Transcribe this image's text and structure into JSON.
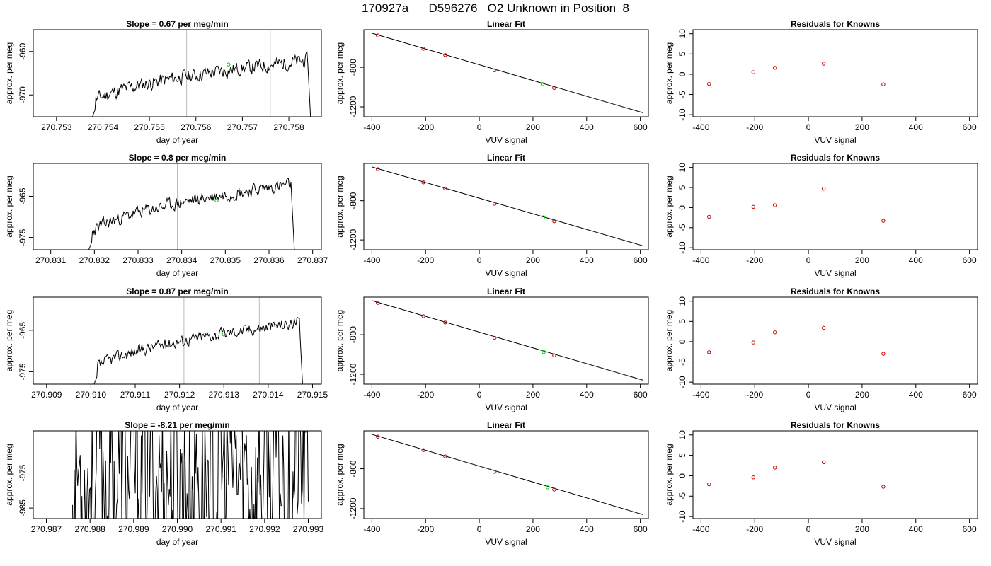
{
  "figure": {
    "main_title": "170927a      D596276   O2 Unknown in Position  8",
    "colors": {
      "trace": "#000000",
      "known_points": "#cc0000",
      "unknown_point": "#00cc00",
      "vertical_lines": "#bbbbbb"
    }
  },
  "chart_data": [
    {
      "type": "line",
      "title": "Slope =  0.67  per meg/min",
      "xlabel": "day of year",
      "ylabel": "approx. per meg",
      "xticks": [
        "270.753",
        "270.754",
        "270.755",
        "270.756",
        "270.757",
        "270.758"
      ],
      "xlim": [
        270.7525,
        270.7587
      ],
      "yticks": [
        "-970",
        "-960"
      ],
      "ylim": [
        -975,
        -955
      ],
      "grid": false,
      "vlines": [
        270.7558,
        270.7576
      ],
      "unknown_point": {
        "x": 270.7567,
        "y": -963
      },
      "trace": {
        "x_start": 270.7537,
        "x_end": 270.7585,
        "level_start": -973,
        "level_end": -962,
        "noise": 2.3,
        "seed": 11
      }
    },
    {
      "type": "scatter",
      "title": "Linear Fit",
      "xlabel": "VUV signal",
      "ylabel": "approx. per meg",
      "xticks": [
        "-400",
        "-200",
        "0",
        "200",
        "400",
        "600"
      ],
      "xlim": [
        -430,
        630
      ],
      "yticks": [
        "-800",
        "-1200"
      ],
      "ylim": [
        -1300,
        -420
      ],
      "grid": false,
      "fit_line": {
        "x": [
          -400,
          610
        ],
        "y": [
          -455,
          -1260
        ]
      },
      "knowns": [
        {
          "x": -378,
          "y": -478
        },
        {
          "x": -208,
          "y": -613
        },
        {
          "x": -127,
          "y": -676
        },
        {
          "x": 57,
          "y": -831
        },
        {
          "x": 279,
          "y": -1009
        }
      ],
      "unknown": {
        "x": 236,
        "y": -970
      }
    },
    {
      "type": "scatter",
      "title": "Residuals for Knowns",
      "xlabel": "VUV signal",
      "ylabel": "approx. per meg",
      "xticks": [
        "-400",
        "-200",
        "0",
        "200",
        "400",
        "600"
      ],
      "xlim": [
        -430,
        630
      ],
      "yticks": [
        "-10",
        "-5",
        "0",
        "5",
        "10"
      ],
      "ylim": [
        -10.5,
        11
      ],
      "grid": false,
      "points": [
        {
          "x": -370,
          "y": -2.4
        },
        {
          "x": -205,
          "y": 0.5
        },
        {
          "x": -125,
          "y": 1.6
        },
        {
          "x": 57,
          "y": 2.6
        },
        {
          "x": 279,
          "y": -2.5
        }
      ]
    },
    {
      "type": "line",
      "title": "Slope =  0.8  per meg/min",
      "xlabel": "day of year",
      "ylabel": "approx. per meg",
      "xticks": [
        "270.831",
        "270.832",
        "270.833",
        "270.834",
        "270.835",
        "270.836",
        "270.837"
      ],
      "xlim": [
        270.8306,
        270.8372
      ],
      "yticks": [
        "-975",
        "-965"
      ],
      "ylim": [
        -978,
        -957
      ],
      "grid": false,
      "vlines": [
        270.8339,
        270.8357
      ],
      "unknown_point": {
        "x": 270.8348,
        "y": -966
      },
      "trace": {
        "x_start": 270.8318,
        "x_end": 270.8366,
        "level_start": -976,
        "level_end": -962,
        "noise": 2.2,
        "seed": 23
      }
    },
    {
      "type": "scatter",
      "title": "Linear Fit",
      "xlabel": "VUV signal",
      "ylabel": "approx. per meg",
      "xticks": [
        "-400",
        "-200",
        "0",
        "200",
        "400",
        "600"
      ],
      "xlim": [
        -430,
        630
      ],
      "yticks": [
        "-800",
        "-1200"
      ],
      "ylim": [
        -1300,
        -420
      ],
      "grid": false,
      "fit_line": {
        "x": [
          -400,
          610
        ],
        "y": [
          -455,
          -1260
        ]
      },
      "knowns": [
        {
          "x": -378,
          "y": -478
        },
        {
          "x": -208,
          "y": -613
        },
        {
          "x": -127,
          "y": -676
        },
        {
          "x": 57,
          "y": -831
        },
        {
          "x": 279,
          "y": -1009
        }
      ],
      "unknown": {
        "x": 238,
        "y": -970
      }
    },
    {
      "type": "scatter",
      "title": "Residuals for Knowns",
      "xlabel": "VUV signal",
      "ylabel": "approx. per meg",
      "xticks": [
        "-400",
        "-200",
        "0",
        "200",
        "400",
        "600"
      ],
      "xlim": [
        -430,
        630
      ],
      "yticks": [
        "-10",
        "-5",
        "0",
        "5",
        "10"
      ],
      "ylim": [
        -10.5,
        11
      ],
      "grid": false,
      "points": [
        {
          "x": -370,
          "y": -2.3
        },
        {
          "x": -205,
          "y": 0.2
        },
        {
          "x": -125,
          "y": 0.6
        },
        {
          "x": 57,
          "y": 4.7
        },
        {
          "x": 279,
          "y": -3.3
        }
      ]
    },
    {
      "type": "line",
      "title": "Slope =  0.87  per meg/min",
      "xlabel": "day of year",
      "ylabel": "approx. per meg",
      "xticks": [
        "270.909",
        "270.910",
        "270.911",
        "270.912",
        "270.913",
        "270.914",
        "270.915"
      ],
      "xlim": [
        270.9087,
        270.9152
      ],
      "yticks": [
        "-975",
        "-965"
      ],
      "ylim": [
        -978,
        -957
      ],
      "grid": false,
      "vlines": [
        270.9121,
        270.9138
      ],
      "unknown_point": {
        "x": 270.913,
        "y": -966
      },
      "trace": {
        "x_start": 270.91,
        "x_end": 270.9148,
        "level_start": -976,
        "level_end": -963,
        "noise": 2.0,
        "seed": 37
      }
    },
    {
      "type": "scatter",
      "title": "Linear Fit",
      "xlabel": "VUV signal",
      "ylabel": "approx. per meg",
      "xticks": [
        "-400",
        "-200",
        "0",
        "200",
        "400",
        "600"
      ],
      "xlim": [
        -430,
        630
      ],
      "yticks": [
        "-800",
        "-1200"
      ],
      "ylim": [
        -1300,
        -420
      ],
      "grid": false,
      "fit_line": {
        "x": [
          -400,
          610
        ],
        "y": [
          -455,
          -1260
        ]
      },
      "knowns": [
        {
          "x": -378,
          "y": -478
        },
        {
          "x": -208,
          "y": -613
        },
        {
          "x": -127,
          "y": -676
        },
        {
          "x": 57,
          "y": -831
        },
        {
          "x": 279,
          "y": -1009
        }
      ],
      "unknown": {
        "x": 240,
        "y": -975
      }
    },
    {
      "type": "scatter",
      "title": "Residuals for Knowns",
      "xlabel": "VUV signal",
      "ylabel": "approx. per meg",
      "xticks": [
        "-400",
        "-200",
        "0",
        "200",
        "400",
        "600"
      ],
      "xlim": [
        -430,
        630
      ],
      "yticks": [
        "-10",
        "-5",
        "0",
        "5",
        "10"
      ],
      "ylim": [
        -10.5,
        11
      ],
      "grid": false,
      "points": [
        {
          "x": -370,
          "y": -2.6
        },
        {
          "x": -205,
          "y": -0.2
        },
        {
          "x": -125,
          "y": 2.3
        },
        {
          "x": 57,
          "y": 3.4
        },
        {
          "x": 279,
          "y": -3.0
        }
      ]
    },
    {
      "type": "line",
      "title": "Slope =  -8.21  per meg/min",
      "xlabel": "day of year",
      "ylabel": "approx. per meg",
      "xticks": [
        "270.987",
        "270.988",
        "270.989",
        "270.990",
        "270.991",
        "270.992",
        "270.993"
      ],
      "xlim": [
        270.9867,
        270.9933
      ],
      "yticks": [
        "-985",
        "-975"
      ],
      "ylim": [
        -988,
        -963
      ],
      "grid": false,
      "vlines": [],
      "unknown_point": {
        "x": 270.9911,
        "y": -976
      },
      "trace": {
        "x_start": 270.9876,
        "x_end": 270.993,
        "level_start": -975,
        "level_end": -975,
        "noise": 40,
        "seed": 53
      }
    },
    {
      "type": "scatter",
      "title": "Linear Fit",
      "xlabel": "VUV signal",
      "ylabel": "approx. per meg",
      "xticks": [
        "-400",
        "-200",
        "0",
        "200",
        "400",
        "600"
      ],
      "xlim": [
        -430,
        630
      ],
      "yticks": [
        "-800",
        "-1200"
      ],
      "ylim": [
        -1300,
        -420
      ],
      "grid": false,
      "fit_line": {
        "x": [
          -400,
          610
        ],
        "y": [
          -455,
          -1260
        ]
      },
      "knowns": [
        {
          "x": -378,
          "y": -478
        },
        {
          "x": -208,
          "y": -613
        },
        {
          "x": -127,
          "y": -676
        },
        {
          "x": 57,
          "y": -831
        },
        {
          "x": 279,
          "y": -1009
        }
      ],
      "unknown": {
        "x": 255,
        "y": -987
      }
    },
    {
      "type": "scatter",
      "title": "Residuals for Knowns",
      "xlabel": "VUV signal",
      "ylabel": "approx. per meg",
      "xticks": [
        "-400",
        "-200",
        "0",
        "200",
        "400",
        "600"
      ],
      "xlim": [
        -430,
        630
      ],
      "yticks": [
        "-10",
        "-5",
        "0",
        "5",
        "10"
      ],
      "ylim": [
        -10.5,
        11
      ],
      "grid": false,
      "points": [
        {
          "x": -370,
          "y": -2.1
        },
        {
          "x": -205,
          "y": -0.4
        },
        {
          "x": -125,
          "y": 2.0
        },
        {
          "x": 57,
          "y": 3.3
        },
        {
          "x": 279,
          "y": -2.7
        }
      ]
    }
  ]
}
